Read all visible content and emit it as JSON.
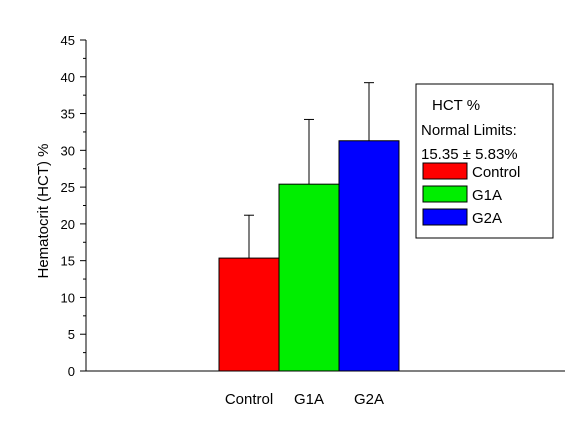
{
  "chart_data": {
    "type": "bar",
    "categories": [
      "Control",
      "G1A",
      "G2A"
    ],
    "values": [
      15.35,
      25.4,
      31.3
    ],
    "errors": [
      5.83,
      8.8,
      7.9
    ],
    "colors": [
      "#ff0000",
      "#00ee00",
      "#0000ff"
    ],
    "title": "",
    "xlabel": "",
    "ylabel": "Hematocrit (HCT) %",
    "ylim": [
      0,
      45
    ],
    "yticks": [
      "0",
      "5",
      "10",
      "15",
      "20",
      "25",
      "30",
      "35",
      "40",
      "45"
    ],
    "grid": false,
    "legend": {
      "position": "top-right",
      "title_lines": [
        "HCT %",
        "Normal Limits:",
        "15.35 ± 5.83%"
      ],
      "entries": [
        "Control",
        "G1A",
        "G2A"
      ]
    }
  }
}
